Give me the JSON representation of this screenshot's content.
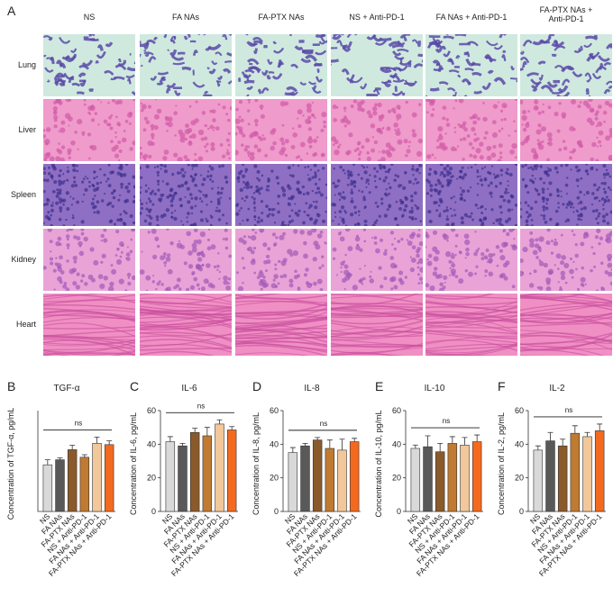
{
  "figure": {
    "panel_a_letter": "A",
    "columns": [
      "NS",
      "FA NAs",
      "FA-PTX NAs",
      "NS + Anti-PD-1",
      "FA NAs + Anti-PD-1",
      "FA-PTX NAs +\nAnti-PD-1"
    ],
    "rows": [
      "Lung",
      "Liver",
      "Spleen",
      "Kidney",
      "Heart"
    ],
    "tissue_colors": {
      "Lung": {
        "bg": "#cfe9df",
        "fg": "#5b4aa8"
      },
      "Liver": {
        "bg": "#ef9bcb",
        "fg": "#d25aa6"
      },
      "Spleen": {
        "bg": "#8f6fc3",
        "fg": "#3d2f8f"
      },
      "Kidney": {
        "bg": "#eaa3d6",
        "fg": "#a05ab8"
      },
      "Heart": {
        "bg": "#f08fc4",
        "fg": "#c84f9c"
      }
    }
  },
  "chart_data": [
    {
      "letter": "B",
      "type": "bar",
      "title": "TGF-α",
      "ylabel": "Concentration of TGF-α, pg/mL",
      "ylim": [
        0,
        80
      ],
      "yticks": [],
      "show_y_ticklabels": false,
      "annotation": "ns",
      "categories": [
        "NS",
        "FA NAs",
        "FA-PTX NAs",
        "NS + Anti-PD-1",
        "FA NAs + Anti-PD-1",
        "FA-PTX NAs + Anti-PD-1"
      ],
      "values": [
        37,
        41,
        49,
        43,
        54,
        53
      ],
      "errors": [
        4,
        1.5,
        3.5,
        2,
        5,
        3
      ]
    },
    {
      "letter": "C",
      "type": "bar",
      "title": "IL-6",
      "ylabel": "Concentration of IL-6, pg/mL",
      "ylim": [
        0,
        60
      ],
      "yticks": [
        0,
        20,
        40,
        60
      ],
      "show_y_ticklabels": true,
      "annotation": "ns",
      "categories": [
        "NS",
        "FA NAs",
        "FA-PTX NAs",
        "NS + Anti-PD-1",
        "FA NAs + Anti-PD-1",
        "FA-PTX NAs + Anti-PD-1"
      ],
      "values": [
        41.5,
        39,
        47,
        45,
        52,
        48.5
      ],
      "errors": [
        3,
        1.5,
        2.5,
        5,
        2.5,
        2
      ]
    },
    {
      "letter": "D",
      "type": "bar",
      "title": "IL-8",
      "ylabel": "Concentration of IL-8, pg/mL",
      "ylim": [
        0,
        60
      ],
      "yticks": [
        0,
        20,
        40,
        60
      ],
      "show_y_ticklabels": true,
      "annotation": "ns",
      "categories": [
        "NS",
        "FA NAs",
        "FA-PTX NAs",
        "NS + Anti-PD-1",
        "FA NAs + Anti-PD-1",
        "FA-PTX NAs + Anti-PD-1"
      ],
      "values": [
        35,
        39,
        42.5,
        37.5,
        36.5,
        41.5
      ],
      "errors": [
        3,
        1.5,
        1.5,
        5,
        6.5,
        2
      ]
    },
    {
      "letter": "E",
      "type": "bar",
      "title": "IL-10",
      "ylabel": "Concentration of IL-10, pg/mL",
      "ylim": [
        0,
        60
      ],
      "yticks": [
        0,
        20,
        40,
        60
      ],
      "show_y_ticklabels": true,
      "annotation": "ns",
      "categories": [
        "NS",
        "FA NAs",
        "FA-PTX NAs",
        "NS + Anti-PD-1",
        "FA NAs + Anti-PD-1",
        "FA-PTX NAs + Anti-PD-1"
      ],
      "values": [
        37.5,
        38.5,
        35.5,
        40.5,
        39.5,
        41.5
      ],
      "errors": [
        2,
        6.5,
        5,
        4,
        4.5,
        4
      ]
    },
    {
      "letter": "F",
      "type": "bar",
      "title": "IL-2",
      "ylabel": "Concentration of IL-2, pg/mL",
      "ylim": [
        0,
        60
      ],
      "yticks": [
        0,
        20,
        40,
        60
      ],
      "show_y_ticklabels": true,
      "annotation": "ns",
      "categories": [
        "NS",
        "FA NAs",
        "FA-PTX NAs",
        "NS + Anti-PD-1",
        "FA NAs + Anti-PD-1",
        "FA-PTX NAs + Anti-PD-1"
      ],
      "values": [
        36.5,
        42,
        39,
        46.5,
        44.5,
        48
      ],
      "errors": [
        2.5,
        5,
        4,
        4.5,
        2.5,
        4
      ]
    }
  ],
  "bar_colors": [
    "#d9d9d9",
    "#595959",
    "#8b5a2b",
    "#c07a32",
    "#f2c79a",
    "#f36a1f"
  ]
}
